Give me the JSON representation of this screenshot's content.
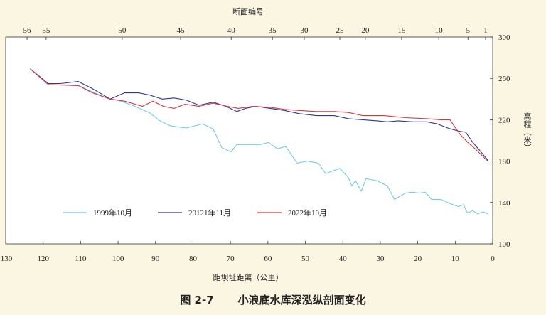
{
  "chart_data": {
    "type": "line",
    "title": "小浪底水库深泓纵剖面变化",
    "figure_label": "图 2-7",
    "xlabel": "距坝址距离（公里）",
    "x2label": "断面编号",
    "ylabel": "高程（米）",
    "xlim": [
      130,
      0
    ],
    "ylim": [
      100,
      300
    ],
    "x_ticks": [
      130,
      120,
      110,
      100,
      90,
      80,
      70,
      60,
      50,
      40,
      30,
      20,
      10,
      0
    ],
    "y_ticks": [
      300,
      260,
      220,
      180,
      140,
      100
    ],
    "y_axis_position": "right",
    "section_ticks": [
      {
        "label": "56",
        "km": 124.3
      },
      {
        "label": "55",
        "km": 119.2
      },
      {
        "label": "50",
        "km": 98.9
      },
      {
        "label": "45",
        "km": 83.3
      },
      {
        "label": "40",
        "km": 69.8
      },
      {
        "label": "35",
        "km": 58.8
      },
      {
        "label": "30",
        "km": 50.3
      },
      {
        "label": "25",
        "km": 40.8
      },
      {
        "label": "20",
        "km": 34.0
      },
      {
        "label": "15",
        "km": 24.3
      },
      {
        "label": "10",
        "km": 14.4
      },
      {
        "label": "5",
        "km": 6.6
      },
      {
        "label": "1",
        "km": 1.9
      }
    ],
    "grid": false,
    "legend_position": "bottom-left",
    "series": [
      {
        "name": "1999年10月",
        "color": "#76cbe8",
        "points": [
          [
            123.4,
            269
          ],
          [
            118.6,
            254
          ],
          [
            110.6,
            253
          ],
          [
            103.1,
            241
          ],
          [
            99.3,
            238
          ],
          [
            95.5,
            233
          ],
          [
            91.7,
            227
          ],
          [
            88.8,
            219
          ],
          [
            86.0,
            214
          ],
          [
            81.8,
            212
          ],
          [
            77.4,
            216
          ],
          [
            74.6,
            211
          ],
          [
            72.3,
            193
          ],
          [
            69.8,
            189
          ],
          [
            68.3,
            196
          ],
          [
            62.2,
            196
          ],
          [
            59.8,
            198
          ],
          [
            57.5,
            192
          ],
          [
            55.2,
            194
          ],
          [
            52.2,
            178
          ],
          [
            49.5,
            180
          ],
          [
            46.5,
            178
          ],
          [
            44.6,
            168
          ],
          [
            40.8,
            173
          ],
          [
            38.5,
            164
          ],
          [
            37.6,
            156
          ],
          [
            36.6,
            161
          ],
          [
            35.1,
            151
          ],
          [
            33.8,
            163
          ],
          [
            30.9,
            161
          ],
          [
            28.1,
            156
          ],
          [
            26.2,
            143
          ],
          [
            23.3,
            149
          ],
          [
            21.4,
            150
          ],
          [
            19.5,
            149
          ],
          [
            18.0,
            150
          ],
          [
            16.3,
            143
          ],
          [
            13.9,
            143
          ],
          [
            11.4,
            139
          ],
          [
            9.1,
            136
          ],
          [
            7.8,
            138
          ],
          [
            6.8,
            130
          ],
          [
            5.3,
            132
          ],
          [
            4.0,
            129
          ],
          [
            2.5,
            131
          ],
          [
            1.3,
            129
          ]
        ]
      },
      {
        "name": "20121年11月",
        "color": "#2e3a8c",
        "points": [
          [
            123.4,
            269
          ],
          [
            118.6,
            255
          ],
          [
            115.4,
            255
          ],
          [
            110.6,
            257
          ],
          [
            106.8,
            250
          ],
          [
            102.1,
            240
          ],
          [
            98.3,
            246
          ],
          [
            94.5,
            246
          ],
          [
            91.7,
            244
          ],
          [
            88.2,
            240
          ],
          [
            85.0,
            241
          ],
          [
            81.8,
            239
          ],
          [
            78.4,
            234
          ],
          [
            74.6,
            237
          ],
          [
            71.2,
            233
          ],
          [
            68.3,
            228
          ],
          [
            66.0,
            231
          ],
          [
            63.2,
            233
          ],
          [
            59.4,
            231
          ],
          [
            55.6,
            229
          ],
          [
            51.8,
            226
          ],
          [
            47.1,
            224
          ],
          [
            42.3,
            224
          ],
          [
            38.5,
            221
          ],
          [
            34.7,
            220
          ],
          [
            30.9,
            219
          ],
          [
            28.1,
            218
          ],
          [
            25.2,
            219
          ],
          [
            21.4,
            218
          ],
          [
            17.6,
            218
          ],
          [
            14.8,
            216
          ],
          [
            12.0,
            212
          ],
          [
            9.1,
            209
          ],
          [
            7.2,
            208
          ],
          [
            5.3,
            198
          ],
          [
            3.4,
            190
          ],
          [
            1.3,
            181
          ]
        ]
      },
      {
        "name": "2022年10月",
        "color": "#d2393f",
        "points": [
          [
            123.4,
            269
          ],
          [
            118.6,
            254
          ],
          [
            110.6,
            253
          ],
          [
            106.8,
            246
          ],
          [
            102.1,
            240
          ],
          [
            98.3,
            238
          ],
          [
            93.5,
            233
          ],
          [
            90.7,
            238
          ],
          [
            87.9,
            233
          ],
          [
            85.0,
            231
          ],
          [
            82.2,
            235
          ],
          [
            78.4,
            233
          ],
          [
            74.6,
            236
          ],
          [
            70.8,
            233
          ],
          [
            67.9,
            231
          ],
          [
            64.1,
            233
          ],
          [
            59.4,
            232
          ],
          [
            55.6,
            230
          ],
          [
            51.8,
            229
          ],
          [
            47.1,
            228
          ],
          [
            42.3,
            228
          ],
          [
            38.5,
            227
          ],
          [
            34.7,
            224
          ],
          [
            29.0,
            224
          ],
          [
            23.3,
            222
          ],
          [
            17.6,
            221
          ],
          [
            13.9,
            220
          ],
          [
            11.4,
            220
          ],
          [
            10.1,
            213
          ],
          [
            8.5,
            205
          ],
          [
            6.6,
            198
          ],
          [
            4.4,
            191
          ],
          [
            1.3,
            180
          ]
        ]
      }
    ]
  }
}
